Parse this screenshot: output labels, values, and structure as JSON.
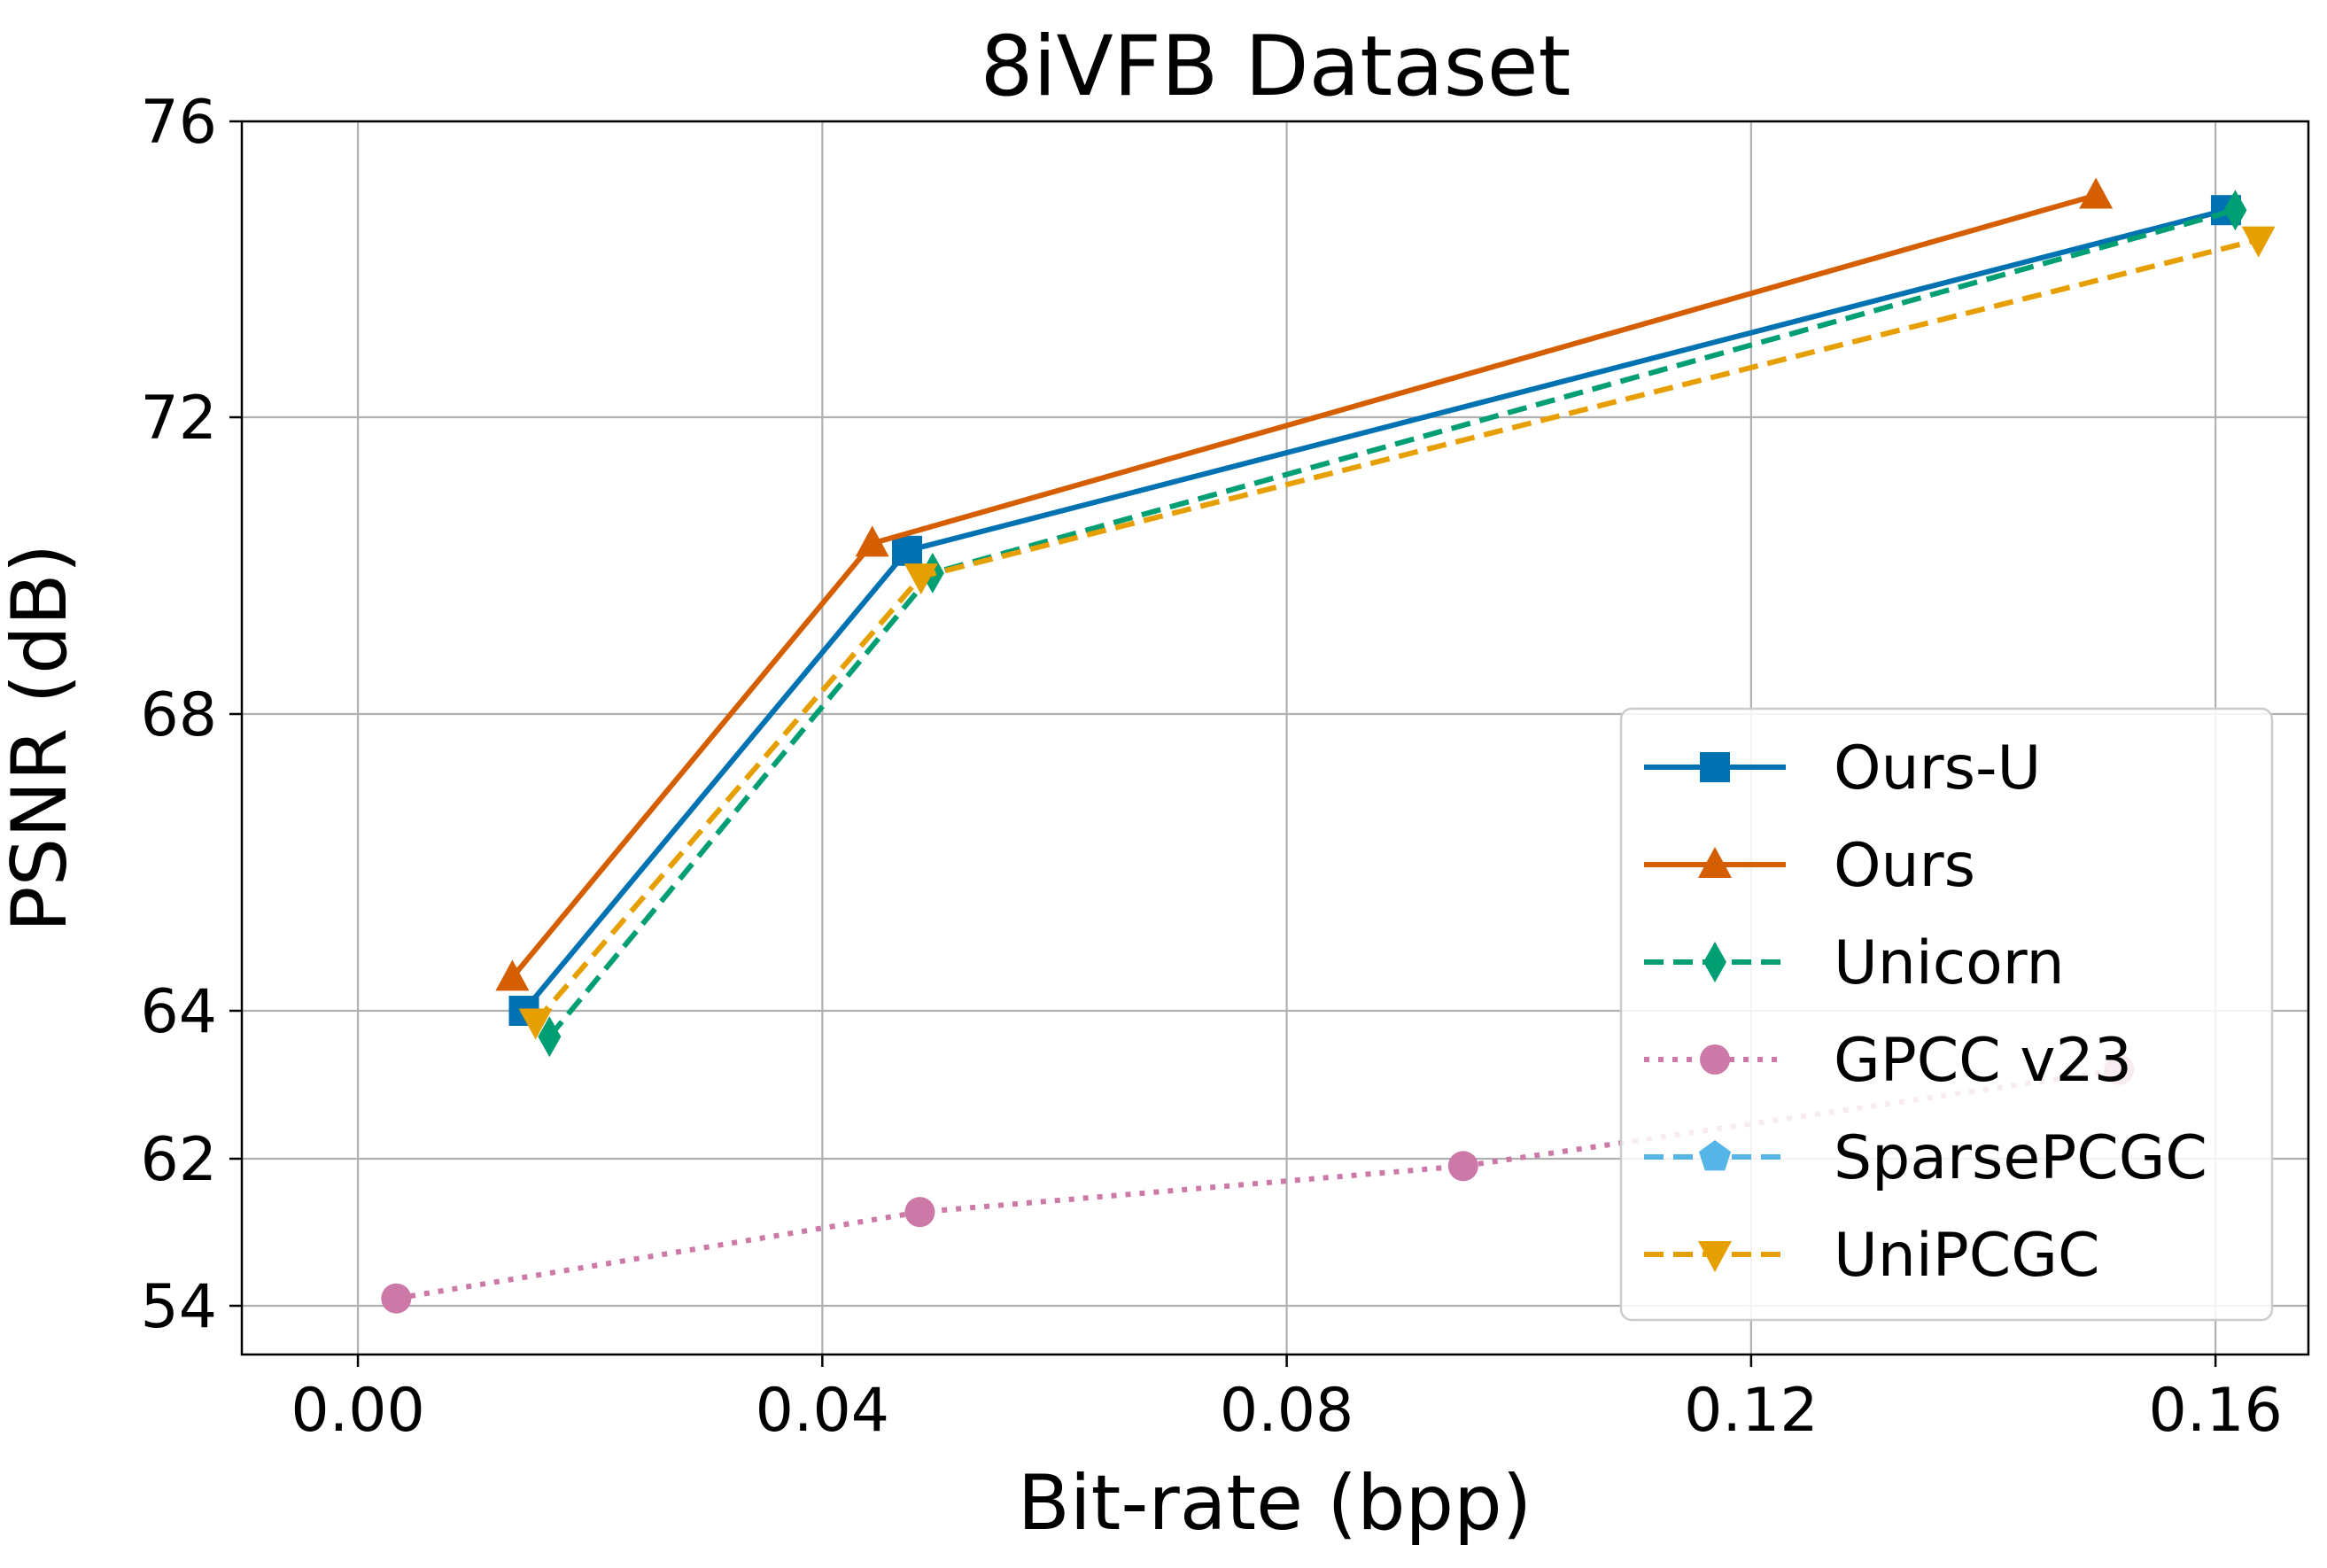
{
  "chart_data": {
    "type": "line",
    "title": "8iVFB Dataset",
    "xlabel": "Bit-rate (bpp)",
    "ylabel": "PSNR (dB)",
    "xlim": [
      -0.01,
      0.168
    ],
    "x_ticks": [
      0.0,
      0.04,
      0.08,
      0.12,
      0.16
    ],
    "x_tick_labels": [
      "0.00",
      "0.04",
      "0.08",
      "0.12",
      "0.16"
    ],
    "y_ticks": [
      54,
      62,
      64,
      68,
      72,
      76
    ],
    "y_tick_labels": [
      "54",
      "62",
      "64",
      "68",
      "72",
      "76"
    ],
    "y_axis_note": "non-linear (broken) y-axis: tick labels 54, 62, 64, 68, 72, 76",
    "grid": true,
    "legend_position": "lower-right",
    "series": [
      {
        "name": "Ours-U",
        "color": "#0072b2",
        "line_style": "solid",
        "marker": "square",
        "x": [
          0.0143,
          0.0473,
          0.1609
        ],
        "y": [
          64.0,
          70.2,
          74.8
        ]
      },
      {
        "name": "Ours",
        "color": "#d55e00",
        "line_style": "solid",
        "marker": "triangle-up",
        "x": [
          0.0133,
          0.0443,
          0.1497
        ],
        "y": [
          64.45,
          70.3,
          75.0
        ]
      },
      {
        "name": "Unicorn",
        "color": "#009e73",
        "line_style": "dashed",
        "marker": "diamond",
        "x": [
          0.0165,
          0.0495,
          0.1617
        ],
        "y": [
          63.65,
          69.9,
          74.8
        ]
      },
      {
        "name": "GPCC v23",
        "color": "#cc79a7",
        "line_style": "dotted",
        "marker": "circle",
        "x": [
          0.0033,
          0.0484,
          0.0952,
          0.1517
        ],
        "y": [
          54.4,
          59.1,
          61.6,
          63.2
        ]
      },
      {
        "name": "SparsePCGC",
        "color": "#56b4e9",
        "line_style": "dashed",
        "marker": "pentagon",
        "x": [],
        "y": []
      },
      {
        "name": "UniPCGC",
        "color": "#e69f00",
        "line_style": "dashed",
        "marker": "triangle-down",
        "x": [
          0.0153,
          0.0485,
          0.1637
        ],
        "y": [
          63.85,
          69.85,
          74.4
        ]
      }
    ]
  }
}
